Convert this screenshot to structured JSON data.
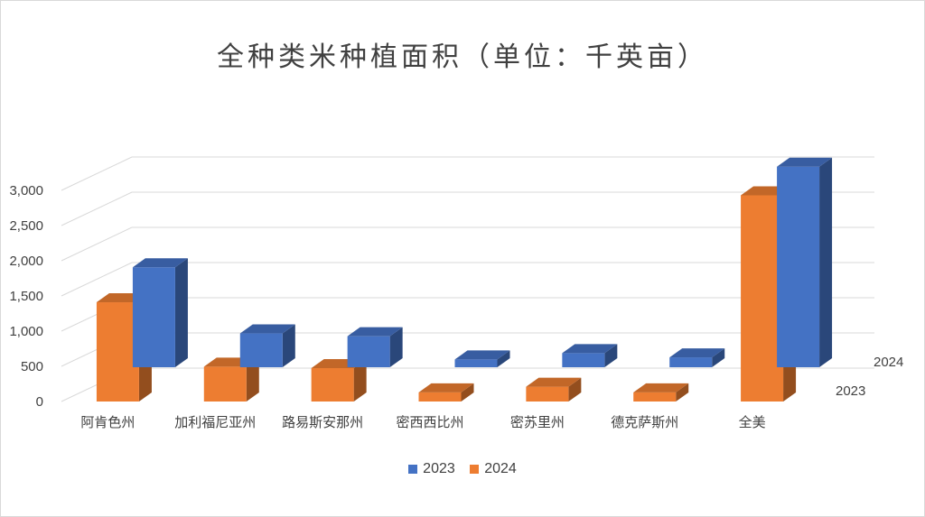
{
  "chart_data": {
    "type": "bar",
    "variant": "3d-column",
    "title": "全种类米种植面积（单位：千英亩）",
    "categories": [
      "阿肯色州",
      "加利福尼亚州",
      "路易斯安那州",
      "密西西比州",
      "密苏里州",
      "德克萨斯州",
      "全美"
    ],
    "series": [
      {
        "name": "2023",
        "color": "#4472c4",
        "values": [
          1420,
          480,
          440,
          110,
          200,
          140,
          2850
        ]
      },
      {
        "name": "2024",
        "color": "#ed7d31",
        "values": [
          1410,
          495,
          475,
          130,
          210,
          130,
          2930
        ]
      }
    ],
    "ylim": [
      0,
      3000
    ],
    "yticks": [
      "0",
      "500",
      "1,000",
      "1,500",
      "2,000",
      "2,500",
      "3,000"
    ],
    "grid": true,
    "legend": "bottom",
    "depth_labels": [
      "2024",
      "2023"
    ]
  }
}
